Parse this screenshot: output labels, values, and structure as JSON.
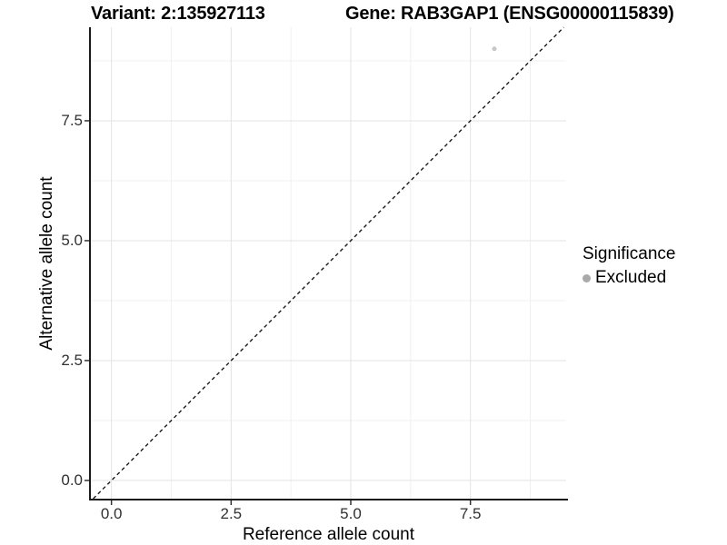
{
  "titles": {
    "left": "Variant: 2:135927113",
    "right": "Gene: RAB3GAP1 (ENSG00000115839)"
  },
  "chart_data": {
    "type": "scatter",
    "xlabel": "Reference allele count",
    "ylabel": "Alternative allele count",
    "xlim": [
      -0.43,
      9.5
    ],
    "ylim": [
      -0.38,
      9.45
    ],
    "x_ticks": [
      0.0,
      2.5,
      5.0,
      7.5
    ],
    "y_ticks": [
      0.0,
      2.5,
      5.0,
      7.5
    ],
    "x_minor_ticks": [
      1.25,
      3.75,
      6.25,
      8.75
    ],
    "y_minor_ticks": [
      1.25,
      3.75,
      6.25,
      8.75
    ],
    "tick_decimals": 1,
    "grid": true,
    "points": [
      {
        "x": 8,
        "y": 9,
        "series": "Excluded",
        "color": "#c6c6c6",
        "radius": 2.5
      }
    ],
    "reference_line": {
      "slope": 1,
      "intercept": 0,
      "style": "dashed",
      "color": "#1a1a1a"
    },
    "legend": {
      "position": "right",
      "title": "Significance",
      "items": [
        {
          "label": "Excluded",
          "color": "#a9a9a9"
        }
      ]
    },
    "colors": {
      "grid_major": "#e3e3e3",
      "grid_minor": "#f0f0f0",
      "axis_line": "#1b1b1b",
      "tick_mark": "#333333",
      "tick_label": "#313131"
    }
  }
}
